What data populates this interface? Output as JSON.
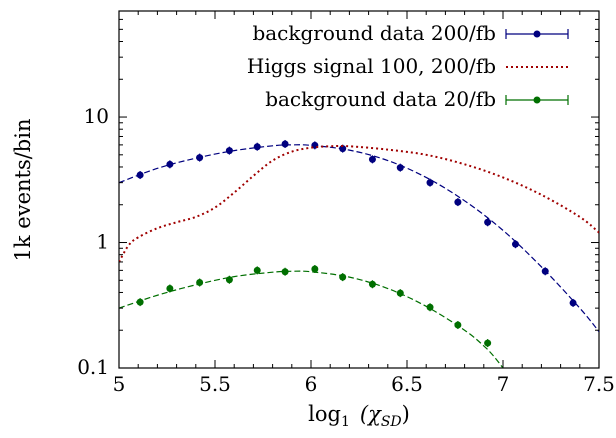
{
  "chart_data": {
    "type": "line",
    "xlabel": "log",
    "xlabel_sub": "1",
    "xlabel_arg": "(χ",
    "xlabel_arg_sub": "SD",
    "xlabel_close": ")",
    "ylabel": "1k events/bin",
    "xlim": [
      5,
      7.5
    ],
    "ylim": [
      0.1,
      70
    ],
    "yscale": "log",
    "grid": false,
    "legend_position": "top-right",
    "x_ticks": [
      5,
      5.5,
      6,
      6.5,
      7,
      7.5
    ],
    "x_tick_labels": [
      "5",
      "5.5",
      "6",
      "6.5",
      "7",
      "7.5"
    ],
    "y_ticks": [
      0.1,
      1,
      10
    ],
    "y_tick_labels": [
      "0.1",
      "1",
      "10"
    ],
    "series": [
      {
        "name": "background data 200/fb",
        "color": "#00007f",
        "style": "points-errorbars-with-dashed-fit",
        "points_x": [
          5.11,
          5.265,
          5.42,
          5.575,
          5.72,
          5.865,
          6.02,
          6.165,
          6.32,
          6.465,
          6.62,
          6.765,
          6.92,
          7.065,
          7.22,
          7.365
        ],
        "points_y": [
          3.45,
          4.2,
          4.75,
          5.4,
          5.8,
          6.1,
          5.95,
          5.6,
          4.6,
          3.95,
          3.0,
          2.1,
          1.45,
          0.97,
          0.59,
          0.33
        ],
        "fit_x": [
          5.0,
          5.2,
          5.4,
          5.6,
          5.8,
          5.9,
          6.0,
          6.2,
          6.4,
          6.6,
          6.8,
          7.0,
          7.2,
          7.4,
          7.5
        ],
        "fit_y": [
          3.0,
          3.9,
          4.7,
          5.4,
          5.9,
          6.0,
          5.95,
          5.45,
          4.5,
          3.3,
          2.15,
          1.25,
          0.64,
          0.3,
          0.195
        ]
      },
      {
        "name": "Higgs signal   100, 200/fb",
        "color": "#a00000",
        "style": "dotted-line",
        "x": [
          5.0,
          5.05,
          5.1,
          5.2,
          5.3,
          5.4,
          5.5,
          5.6,
          5.7,
          5.8,
          5.9,
          6.0,
          6.1,
          6.2,
          6.4,
          6.6,
          6.8,
          7.0,
          7.2,
          7.4,
          7.5
        ],
        "y": [
          0.7,
          0.95,
          1.1,
          1.3,
          1.45,
          1.6,
          1.9,
          2.5,
          3.4,
          4.5,
          5.3,
          5.7,
          5.85,
          5.85,
          5.5,
          5.0,
          4.2,
          3.3,
          2.4,
          1.6,
          1.2
        ]
      },
      {
        "name": "background data 20/fb",
        "color": "#006f00",
        "style": "points-errorbars-with-dashed-fit",
        "points_x": [
          5.11,
          5.265,
          5.42,
          5.575,
          5.72,
          5.865,
          6.02,
          6.165,
          6.32,
          6.465,
          6.62,
          6.765,
          6.92
        ],
        "points_y": [
          0.335,
          0.43,
          0.48,
          0.505,
          0.6,
          0.585,
          0.615,
          0.53,
          0.465,
          0.395,
          0.305,
          0.22,
          0.158
        ],
        "fit_x": [
          5.0,
          5.2,
          5.4,
          5.6,
          5.8,
          5.9,
          6.0,
          6.2,
          6.4,
          6.6,
          6.8,
          6.9,
          6.95,
          7.0
        ],
        "fit_y": [
          0.3,
          0.38,
          0.46,
          0.535,
          0.58,
          0.59,
          0.585,
          0.53,
          0.43,
          0.31,
          0.2,
          0.15,
          0.125,
          0.1
        ]
      }
    ]
  }
}
